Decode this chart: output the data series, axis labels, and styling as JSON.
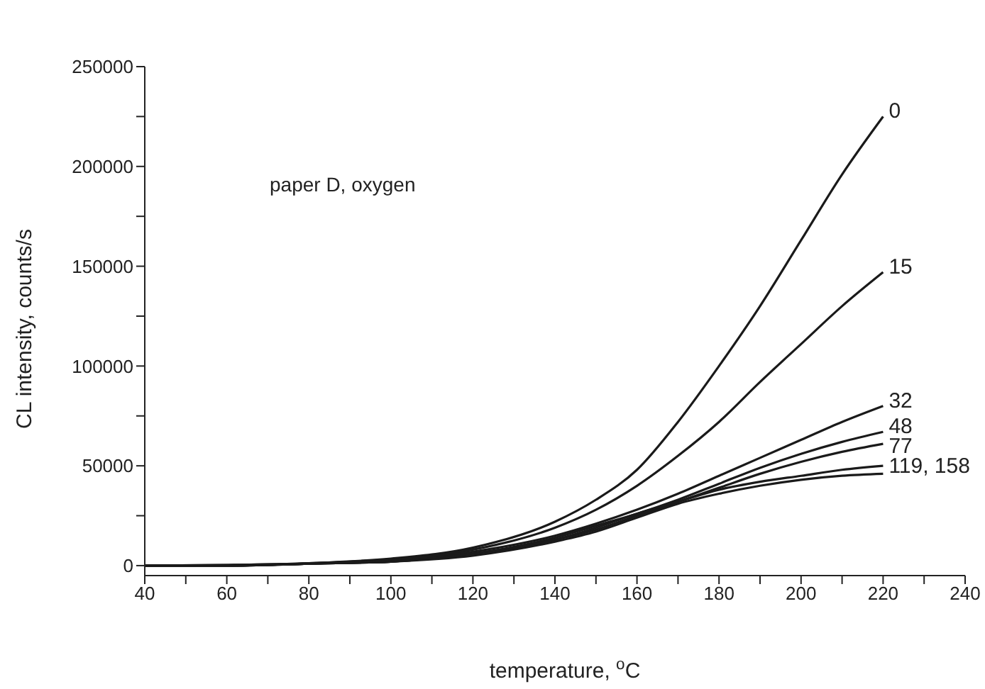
{
  "chart_data": {
    "type": "line",
    "ylabel": "CL intensity, counts/s",
    "xlabel": "temperature, $^{o}$C",
    "annotations": [
      "paper D, oxygen"
    ],
    "x": [
      40,
      60,
      80,
      100,
      120,
      140,
      150,
      160,
      170,
      180,
      190,
      200,
      210,
      220
    ],
    "series": [
      {
        "name": "0",
        "color": "#1a1a1a",
        "values": [
          0,
          300,
          1200,
          3500,
          9000,
          22000,
          33000,
          48000,
          72000,
          100000,
          130000,
          163000,
          196000,
          225000
        ]
      },
      {
        "name": "15",
        "color": "#1a1a1a",
        "values": [
          0,
          300,
          1100,
          3200,
          8000,
          19000,
          28000,
          40000,
          55000,
          72000,
          92000,
          111000,
          130000,
          147000
        ]
      },
      {
        "name": "32",
        "color": "#1a1a1a",
        "values": [
          0,
          0,
          1000,
          3000,
          7000,
          15000,
          21000,
          28000,
          36000,
          45000,
          54000,
          63000,
          72000,
          80000
        ]
      },
      {
        "name": "48",
        "color": "#1a1a1a",
        "values": [
          0,
          0,
          1000,
          3000,
          6000,
          14000,
          20000,
          26000,
          33000,
          41000,
          49000,
          56000,
          62000,
          67000
        ]
      },
      {
        "name": "77",
        "color": "#1a1a1a",
        "values": [
          0,
          0,
          1000,
          2000,
          6000,
          13000,
          18000,
          25000,
          32000,
          39000,
          46000,
          52000,
          57000,
          61000
        ]
      },
      {
        "name": "119, 158",
        "color": "#1a1a1a",
        "values": [
          0,
          0,
          1000,
          2000,
          6000,
          13000,
          19000,
          26000,
          32000,
          38000,
          42000,
          45000,
          48000,
          50000
        ]
      },
      {
        "color": "#1a1a1a",
        "values": [
          0,
          0,
          1000,
          2000,
          5000,
          12000,
          17000,
          24000,
          31000,
          36000,
          40000,
          43000,
          45000,
          46000
        ]
      }
    ],
    "xlim": [
      40,
      240
    ],
    "xticks": [
      40,
      {
        "value": 50,
        "label": null
      },
      60,
      {
        "value": 70,
        "label": null
      },
      80,
      {
        "value": 90,
        "label": null
      },
      100,
      {
        "value": 110,
        "label": null
      },
      120,
      {
        "value": 130,
        "label": null
      },
      140,
      {
        "value": 150,
        "label": null
      },
      160,
      {
        "value": 170,
        "label": null
      },
      180,
      {
        "value": 190,
        "label": null
      },
      200,
      {
        "value": 210,
        "label": null
      },
      220,
      {
        "value": 230,
        "label": null
      },
      240
    ],
    "ylim": [
      -5000,
      250000
    ],
    "yticks": [
      0,
      {
        "value": 25000,
        "label": null
      },
      50000,
      {
        "value": 75000,
        "label": null
      },
      100000,
      {
        "value": 125000,
        "label": null
      },
      150000,
      {
        "value": 175000,
        "label": null
      },
      200000,
      {
        "value": 225000,
        "label": null
      },
      250000
    ],
    "grid": false,
    "legend": false,
    "marker": "none",
    "line_style": "solid"
  }
}
